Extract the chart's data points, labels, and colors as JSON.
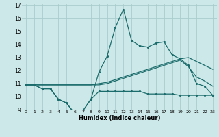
{
  "title": "",
  "xlabel": "Humidex (Indice chaleur)",
  "x": [
    0,
    1,
    2,
    3,
    4,
    5,
    6,
    7,
    8,
    9,
    10,
    11,
    12,
    13,
    14,
    15,
    16,
    17,
    18,
    19,
    20,
    21,
    22,
    23
  ],
  "line1_zigzag": [
    10.9,
    10.9,
    10.6,
    10.6,
    9.8,
    9.5,
    8.7,
    8.9,
    9.8,
    11.9,
    13.1,
    15.3,
    16.7,
    14.3,
    13.9,
    13.8,
    14.1,
    14.2,
    13.2,
    12.9,
    12.4,
    11.0,
    10.8,
    10.1
  ],
  "line2_flat": [
    10.9,
    10.9,
    10.6,
    10.6,
    9.8,
    9.5,
    8.7,
    8.9,
    9.8,
    10.4,
    10.4,
    10.4,
    10.4,
    10.4,
    10.4,
    10.2,
    10.2,
    10.2,
    10.2,
    10.1,
    10.1,
    10.1,
    10.1,
    10.1
  ],
  "line3_trend1": [
    10.9,
    10.9,
    10.9,
    10.9,
    10.9,
    10.9,
    10.9,
    10.9,
    10.9,
    11.0,
    11.1,
    11.3,
    11.5,
    11.7,
    11.9,
    12.1,
    12.3,
    12.5,
    12.7,
    12.9,
    13.0,
    12.7,
    12.4,
    12.1
  ],
  "line4_trend2": [
    10.9,
    10.9,
    10.9,
    10.9,
    10.9,
    10.9,
    10.9,
    10.9,
    10.9,
    10.9,
    11.0,
    11.2,
    11.4,
    11.6,
    11.8,
    12.0,
    12.2,
    12.4,
    12.6,
    12.8,
    12.3,
    11.5,
    11.2,
    10.8
  ],
  "bg_color": "#cde8e8",
  "grid_color": "#aacccc",
  "line_color": "#1a6b6b",
  "ylim": [
    9,
    17
  ],
  "xlim": [
    -0.5,
    23.5
  ],
  "yticks": [
    9,
    10,
    11,
    12,
    13,
    14,
    15,
    16,
    17
  ],
  "xticks": [
    0,
    1,
    2,
    3,
    4,
    5,
    6,
    7,
    8,
    9,
    10,
    11,
    12,
    13,
    14,
    15,
    16,
    17,
    18,
    19,
    20,
    21,
    22,
    23
  ]
}
